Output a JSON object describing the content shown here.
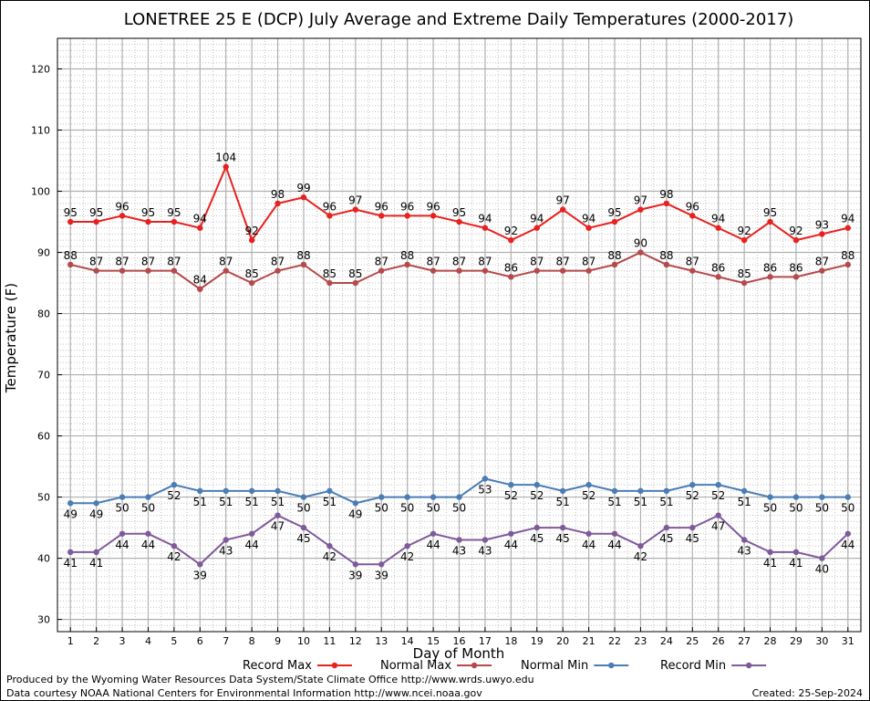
{
  "chart_data": {
    "type": "line",
    "title": "LONETREE 25 E (DCP) July Average and Extreme Daily Temperatures (2000-2017)",
    "xlabel": "Day of Month",
    "ylabel": "Temperature (F)",
    "ylim": [
      28,
      125
    ],
    "xlim": [
      0.5,
      31.5
    ],
    "yticks": [
      30,
      40,
      50,
      60,
      70,
      80,
      90,
      100,
      110,
      120
    ],
    "x": [
      1,
      2,
      3,
      4,
      5,
      6,
      7,
      8,
      9,
      10,
      11,
      12,
      13,
      14,
      15,
      16,
      17,
      18,
      19,
      20,
      21,
      22,
      23,
      24,
      25,
      26,
      27,
      28,
      29,
      30,
      31
    ],
    "grid": true,
    "legend_position": "bottom",
    "series": [
      {
        "name": "Record Max",
        "color": "#e8211f",
        "label_position": "above",
        "values": [
          95,
          95,
          96,
          95,
          95,
          94,
          104,
          92,
          98,
          99,
          96,
          97,
          96,
          96,
          96,
          95,
          94,
          92,
          94,
          97,
          94,
          95,
          97,
          98,
          96,
          94,
          92,
          95,
          92,
          93,
          94
        ]
      },
      {
        "name": "Normal Max",
        "color": "#b5494b",
        "label_position": "above",
        "values": [
          88,
          87,
          87,
          87,
          87,
          84,
          87,
          85,
          87,
          88,
          85,
          85,
          87,
          88,
          87,
          87,
          87,
          86,
          87,
          87,
          87,
          88,
          90,
          88,
          87,
          86,
          85,
          86,
          86,
          87,
          88
        ]
      },
      {
        "name": "Normal Min",
        "color": "#4a7db5",
        "label_position": "below",
        "values": [
          49,
          49,
          50,
          50,
          52,
          51,
          51,
          51,
          51,
          50,
          51,
          49,
          50,
          50,
          50,
          50,
          53,
          52,
          52,
          51,
          52,
          51,
          51,
          51,
          52,
          52,
          51,
          50,
          50,
          50,
          50
        ]
      },
      {
        "name": "Record Min",
        "color": "#7f5a9b",
        "label_position": "below",
        "values": [
          41,
          41,
          44,
          44,
          42,
          39,
          43,
          44,
          47,
          45,
          42,
          39,
          39,
          42,
          44,
          43,
          43,
          44,
          45,
          45,
          44,
          44,
          42,
          45,
          45,
          47,
          43,
          41,
          41,
          40,
          44
        ]
      }
    ]
  },
  "footer": {
    "produced_by": "Produced by the Wyoming Water Resources Data System/State Climate Office http://www.wrds.uwyo.edu",
    "courtesy": "Data courtesy NOAA National Centers for Environmental Information http://www.ncei.noaa.gov",
    "created": "Created: 25-Sep-2024"
  }
}
